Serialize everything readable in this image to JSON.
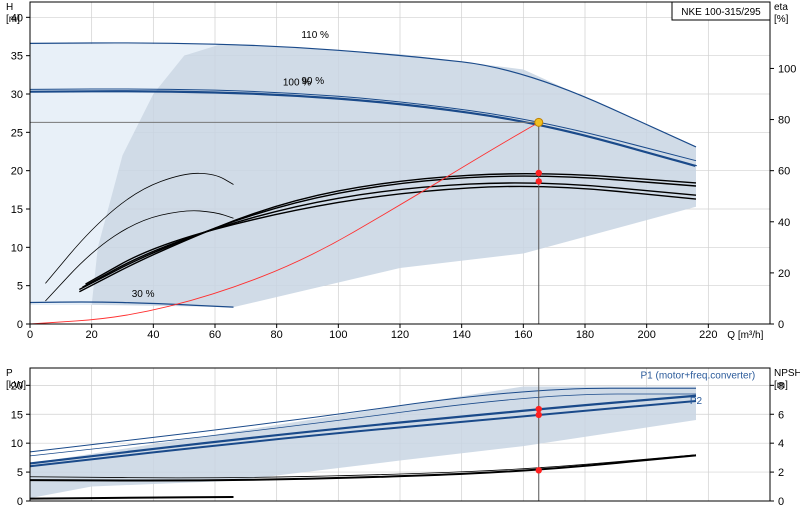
{
  "title_box": "NKE 100-315/295",
  "colors": {
    "envelope": "#c8d5e3",
    "envelope_light": "#e8f0f8",
    "curve_blue": "#1a4a8a",
    "curve_black": "#000000",
    "system": "#ff3030",
    "duty_point": "#ff2020",
    "duty_point_yellow": "#f0c020",
    "grid": "#d0d0d0"
  },
  "chart_data": [
    {
      "id": "head_chart",
      "type": "line",
      "x_axis": {
        "unit": "Q [m³/h]",
        "range": [
          0,
          240
        ],
        "ticks": [
          0,
          20,
          40,
          60,
          80,
          100,
          120,
          140,
          160,
          180,
          200,
          220
        ]
      },
      "y_axis_left": {
        "label": "H",
        "unit": "[m]",
        "range": [
          0,
          42
        ],
        "ticks": [
          0,
          5,
          10,
          15,
          20,
          25,
          30,
          35,
          40
        ]
      },
      "y_axis_right": {
        "label": "eta",
        "unit": "[%]",
        "range": [
          0,
          126
        ],
        "ticks": [
          0,
          20,
          40,
          60,
          80,
          100
        ]
      },
      "speed_labels": [
        {
          "text": "110 %",
          "x": 88,
          "y": 37.3
        },
        {
          "text": "100 %",
          "x": 82,
          "y": 31.1
        },
        {
          "text": "90 %",
          "x": 88,
          "y": 31.3
        },
        {
          "text": "30 %",
          "x": 33,
          "y": 3.5
        }
      ],
      "envelope": [
        [
          0,
          36.5
        ],
        [
          66,
          36.5
        ],
        [
          120,
          35.2
        ],
        [
          160,
          33.2
        ],
        [
          216,
          23
        ],
        [
          216,
          15.3
        ],
        [
          160,
          9.2
        ],
        [
          120,
          7.3
        ],
        [
          66,
          2.2
        ],
        [
          20,
          2.5
        ],
        [
          0,
          2.5
        ]
      ],
      "envelope_outer": [
        [
          0,
          2.5
        ],
        [
          20,
          2.5
        ],
        [
          22,
          10
        ],
        [
          30,
          22
        ],
        [
          40,
          30
        ],
        [
          50,
          35
        ],
        [
          62,
          36.5
        ],
        [
          0,
          36.5
        ]
      ],
      "series": [
        {
          "name": "110 %",
          "color": "curve_blue",
          "width": 1.2,
          "points": [
            [
              0,
              36.6
            ],
            [
              40,
              36.7
            ],
            [
              80,
              36.3
            ],
            [
              120,
              35.1
            ],
            [
              160,
              33.3
            ],
            [
              216,
              23.1
            ]
          ]
        },
        {
          "name": "100 %",
          "color": "curve_blue",
          "width": 2.2,
          "points": [
            [
              0,
              30.3
            ],
            [
              40,
              30.4
            ],
            [
              80,
              30.0
            ],
            [
              120,
              28.8
            ],
            [
              165,
              26.3
            ],
            [
              216,
              20.6
            ]
          ]
        },
        {
          "name": "100 % upper",
          "color": "curve_blue",
          "width": 1.0,
          "points": [
            [
              0,
              30.6
            ],
            [
              40,
              30.7
            ],
            [
              80,
              30.3
            ],
            [
              120,
              29.1
            ],
            [
              165,
              26.6
            ],
            [
              216,
              21.3
            ]
          ]
        },
        {
          "name": "30 %",
          "color": "curve_blue",
          "width": 1.2,
          "points": [
            [
              0,
              2.8
            ],
            [
              20,
              2.9
            ],
            [
              40,
              2.7
            ],
            [
              66,
              2.2
            ]
          ]
        },
        {
          "name": "eta 1",
          "color": "curve_black",
          "width": 1.4,
          "points": [
            [
              16,
              4.5
            ],
            [
              40,
              9.5
            ],
            [
              80,
              15.5
            ],
            [
              120,
              18.6
            ],
            [
              165,
              19.6
            ],
            [
              216,
              18.0
            ]
          ]
        },
        {
          "name": "eta 2",
          "color": "curve_black",
          "width": 1.4,
          "points": [
            [
              17,
              4.8
            ],
            [
              40,
              9.8
            ],
            [
              80,
              15.0
            ],
            [
              120,
              17.8
            ],
            [
              165,
              18.7
            ],
            [
              216,
              16.8
            ]
          ]
        },
        {
          "name": "eta 3",
          "color": "curve_black",
          "width": 1.4,
          "points": [
            [
              18,
              5.2
            ],
            [
              40,
              10.2
            ],
            [
              80,
              14.5
            ],
            [
              120,
              17.2
            ],
            [
              165,
              18.3
            ],
            [
              216,
              16.3
            ]
          ]
        },
        {
          "name": "eta 4",
          "color": "curve_black",
          "width": 1.4,
          "points": [
            [
              16,
              4.2
            ],
            [
              40,
              9.2
            ],
            [
              80,
              15.8
            ],
            [
              120,
              18.9
            ],
            [
              165,
              19.9
            ],
            [
              216,
              18.4
            ]
          ]
        },
        {
          "name": "eta small 1",
          "color": "curve_black",
          "width": 0.8,
          "points": [
            [
              5,
              5.3
            ],
            [
              20,
              12.5
            ],
            [
              35,
              17.5
            ],
            [
              50,
              19.7
            ],
            [
              60,
              19.6
            ],
            [
              66,
              18.2
            ]
          ]
        },
        {
          "name": "eta small 2",
          "color": "curve_black",
          "width": 0.8,
          "points": [
            [
              5,
              3.0
            ],
            [
              20,
              9.5
            ],
            [
              35,
              13.5
            ],
            [
              50,
              14.9
            ],
            [
              60,
              14.6
            ],
            [
              66,
              13.8
            ]
          ]
        },
        {
          "name": "system curve",
          "color": "system",
          "width": 0.9,
          "points": [
            [
              0,
              0
            ],
            [
              30,
              0.8
            ],
            [
              60,
              3.8
            ],
            [
              90,
              8.5
            ],
            [
              120,
              15.5
            ],
            [
              150,
              22.8
            ],
            [
              165,
              26.3
            ]
          ]
        }
      ],
      "duty_point": {
        "x": 165,
        "y": 26.3
      },
      "eta_points": [
        {
          "x": 165,
          "y": 19.7
        },
        {
          "x": 165,
          "y": 18.6
        }
      ],
      "crosshair": {
        "x": 165,
        "y": 26.3
      }
    },
    {
      "id": "power_chart",
      "type": "line",
      "x_axis": {
        "range": [
          0,
          240
        ]
      },
      "y_axis_left": {
        "label": "P",
        "unit": "[kW]",
        "range": [
          0,
          23
        ],
        "ticks": [
          0,
          5,
          10,
          15,
          20
        ]
      },
      "y_axis_right": {
        "label": "NPSH",
        "unit": "[m]",
        "range": [
          0,
          9.2
        ],
        "ticks": [
          0,
          2,
          4,
          6,
          8
        ]
      },
      "series_labels": [
        {
          "text": "P1 (motor+freq.converter)",
          "x": 198,
          "y": 21.2
        },
        {
          "text": "P2",
          "x": 214,
          "y": 16.8
        }
      ],
      "envelope": [
        [
          0,
          6.5
        ],
        [
          160,
          19.8
        ],
        [
          216,
          19.8
        ],
        [
          216,
          14.0
        ],
        [
          160,
          9.5
        ],
        [
          120,
          7.0
        ],
        [
          66,
          3.5
        ],
        [
          20,
          2.5
        ],
        [
          0,
          0.5
        ]
      ],
      "series": [
        {
          "name": "P1 110",
          "color": "curve_blue",
          "width": 1.0,
          "points": [
            [
              0,
              8.5
            ],
            [
              80,
              13.5
            ],
            [
              160,
              19.5
            ],
            [
              216,
              19.5
            ]
          ]
        },
        {
          "name": "P1 100",
          "color": "curve_blue",
          "width": 2.2,
          "points": [
            [
              0,
              6.5
            ],
            [
              80,
              11.5
            ],
            [
              165,
              15.9
            ],
            [
              216,
              18.2
            ]
          ]
        },
        {
          "name": "P2 100",
          "color": "curve_blue",
          "width": 2.0,
          "points": [
            [
              0,
              6.0
            ],
            [
              80,
              10.8
            ],
            [
              165,
              14.9
            ],
            [
              216,
              17.3
            ]
          ]
        },
        {
          "name": "P1 upper thin",
          "color": "curve_blue",
          "width": 0.8,
          "points": [
            [
              0,
              7.8
            ],
            [
              80,
              12.5
            ],
            [
              165,
              18.5
            ],
            [
              216,
              18.5
            ]
          ]
        },
        {
          "name": "NPSH",
          "color": "curve_black",
          "width": 2.0,
          "points": [
            [
              0,
              3.6
            ],
            [
              60,
              3.5
            ],
            [
              120,
              4.2
            ],
            [
              165,
              5.3
            ],
            [
              216,
              7.9
            ]
          ]
        },
        {
          "name": "NPSH 30",
          "color": "curve_black",
          "width": 2.0,
          "points": [
            [
              0,
              0.4
            ],
            [
              40,
              0.6
            ],
            [
              66,
              0.7
            ]
          ]
        },
        {
          "name": "NPSH thin",
          "color": "curve_black",
          "width": 0.8,
          "points": [
            [
              0,
              4.2
            ],
            [
              60,
              3.9
            ],
            [
              120,
              4.6
            ],
            [
              165,
              5.6
            ],
            [
              216,
              8.0
            ]
          ]
        }
      ],
      "duty_points": [
        {
          "x": 165,
          "y": 15.9
        },
        {
          "x": 165,
          "y": 14.9
        },
        {
          "x": 165,
          "y": 5.3
        }
      ],
      "crosshair_x": 165
    }
  ]
}
